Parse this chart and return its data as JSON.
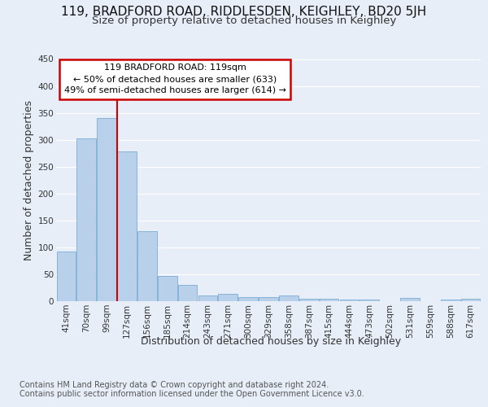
{
  "title": "119, BRADFORD ROAD, RIDDLESDEN, KEIGHLEY, BD20 5JH",
  "subtitle": "Size of property relative to detached houses in Keighley",
  "xlabel": "Distribution of detached houses by size in Keighley",
  "ylabel": "Number of detached properties",
  "footer_line1": "Contains HM Land Registry data © Crown copyright and database right 2024.",
  "footer_line2": "Contains public sector information licensed under the Open Government Licence v3.0.",
  "categories": [
    "41sqm",
    "70sqm",
    "99sqm",
    "127sqm",
    "156sqm",
    "185sqm",
    "214sqm",
    "243sqm",
    "271sqm",
    "300sqm",
    "329sqm",
    "358sqm",
    "387sqm",
    "415sqm",
    "444sqm",
    "473sqm",
    "502sqm",
    "531sqm",
    "559sqm",
    "588sqm",
    "617sqm"
  ],
  "values": [
    93,
    302,
    341,
    279,
    130,
    47,
    30,
    10,
    13,
    8,
    7,
    10,
    5,
    4,
    3,
    3,
    0,
    6,
    0,
    3,
    5
  ],
  "bar_color": "#b8d0ea",
  "bar_edge_color": "#7aadd4",
  "annotation_text_line1": "119 BRADFORD ROAD: 119sqm",
  "annotation_text_line2": "← 50% of detached houses are smaller (633)",
  "annotation_text_line3": "49% of semi-detached houses are larger (614) →",
  "annotation_box_color": "#ffffff",
  "annotation_box_edge_color": "#cc0000",
  "vline_color": "#cc0000",
  "vline_x_index": 2.5,
  "ylim": [
    0,
    450
  ],
  "yticks": [
    0,
    50,
    100,
    150,
    200,
    250,
    300,
    350,
    400,
    450
  ],
  "background_color": "#e8eef8",
  "plot_bg_color": "#e8eef8",
  "grid_color": "#ffffff",
  "title_fontsize": 11,
  "subtitle_fontsize": 9.5,
  "axis_label_fontsize": 9,
  "tick_fontsize": 7.5,
  "footer_fontsize": 7,
  "annot_fontsize": 8
}
